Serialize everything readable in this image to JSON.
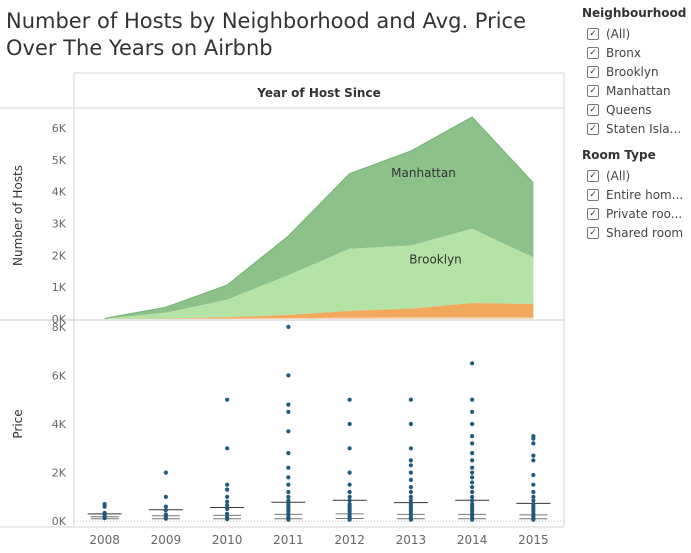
{
  "title": "Number of Hosts by Neighborhood and Avg. Price Over The Years on Airbnb",
  "legends": {
    "neighbourhood": {
      "header": "Neighbourhood",
      "items": [
        "(All)",
        "Bronx",
        "Brooklyn",
        "Manhattan",
        "Queens",
        "Staten Isla..."
      ]
    },
    "room_type": {
      "header": "Room Type",
      "items": [
        "(All)",
        "Entire hom...",
        "Private roo...",
        "Shared room"
      ]
    }
  },
  "chart_data": [
    {
      "type": "area",
      "title": "Year of Host Since",
      "ylabel": "Number of Hosts",
      "stacked": true,
      "x": [
        "2008",
        "2009",
        "2010",
        "2011",
        "2012",
        "2013",
        "2014",
        "2015"
      ],
      "ylim": [
        0,
        6500
      ],
      "yticks": [
        "0K",
        "1K",
        "2K",
        "3K",
        "4K",
        "5K",
        "6K"
      ],
      "ytick_values": [
        0,
        1000,
        2000,
        3000,
        4000,
        5000,
        6000
      ],
      "colors": {
        "Manhattan": "#8cc28a",
        "Brooklyn": "#b4e3a5",
        "Queens": "#f1a75c",
        "Bronx": "#f6c89a",
        "Staten Island": "#fde0c4"
      },
      "series": [
        {
          "name": "Staten Island",
          "values": [
            0,
            0,
            3,
            5,
            8,
            10,
            12,
            10
          ]
        },
        {
          "name": "Bronx",
          "values": [
            0,
            2,
            8,
            20,
            35,
            45,
            50,
            40
          ]
        },
        {
          "name": "Queens",
          "values": [
            0,
            15,
            45,
            100,
            210,
            270,
            440,
            420
          ]
        },
        {
          "name": "Brooklyn",
          "values": [
            10,
            180,
            550,
            1250,
            1950,
            1980,
            2330,
            1460
          ]
        },
        {
          "name": "Manhattan",
          "values": [
            10,
            175,
            460,
            1230,
            2360,
            2970,
            3510,
            2340
          ]
        }
      ],
      "annotations": [
        "Manhattan",
        "Brooklyn"
      ]
    },
    {
      "type": "scatter",
      "ylabel": "Price",
      "x": [
        "2008",
        "2009",
        "2010",
        "2011",
        "2012",
        "2013",
        "2014",
        "2015"
      ],
      "ylim": [
        -200,
        8200
      ],
      "yticks": [
        "0K",
        "2K",
        "4K",
        "6K",
        "8K"
      ],
      "ytick_values": [
        0,
        2000,
        4000,
        6000,
        8000
      ],
      "color": "#1f5a7a",
      "points": {
        "2008": [
          120,
          170,
          250,
          340,
          600,
          700
        ],
        "2009": [
          100,
          170,
          280,
          450,
          600,
          1000,
          2000
        ],
        "2010": [
          80,
          150,
          300,
          500,
          650,
          800,
          1000,
          1300,
          1500,
          3000,
          5000
        ],
        "2011": [
          60,
          120,
          200,
          300,
          400,
          500,
          600,
          700,
          850,
          1000,
          1200,
          1500,
          1800,
          2200,
          2800,
          3700,
          4500,
          4800,
          6000,
          8000
        ],
        "2012": [
          60,
          120,
          200,
          300,
          400,
          500,
          600,
          700,
          850,
          1000,
          1200,
          1500,
          2000,
          3000,
          4000,
          5000
        ],
        "2013": [
          60,
          120,
          200,
          300,
          400,
          500,
          600,
          700,
          850,
          1000,
          1200,
          1400,
          1700,
          2000,
          2300,
          2500,
          3000,
          4000,
          5000
        ],
        "2014": [
          60,
          120,
          200,
          300,
          400,
          500,
          600,
          700,
          850,
          1000,
          1200,
          1400,
          1600,
          1800,
          2000,
          2200,
          2500,
          2800,
          3200,
          3500,
          4000,
          4500,
          5000,
          6500
        ],
        "2015": [
          60,
          120,
          200,
          300,
          400,
          500,
          600,
          700,
          850,
          1000,
          1200,
          1500,
          1900,
          2500,
          2700,
          3200,
          3400,
          3500
        ]
      },
      "reference_lines": {
        "2008": [
          100,
          180,
          300
        ],
        "2009": [
          100,
          220,
          470
        ],
        "2010": [
          100,
          240,
          560
        ],
        "2011": [
          100,
          280,
          780
        ],
        "2012": [
          110,
          300,
          860
        ],
        "2013": [
          100,
          280,
          760
        ],
        "2014": [
          100,
          280,
          860
        ],
        "2015": [
          100,
          260,
          730
        ]
      }
    }
  ]
}
